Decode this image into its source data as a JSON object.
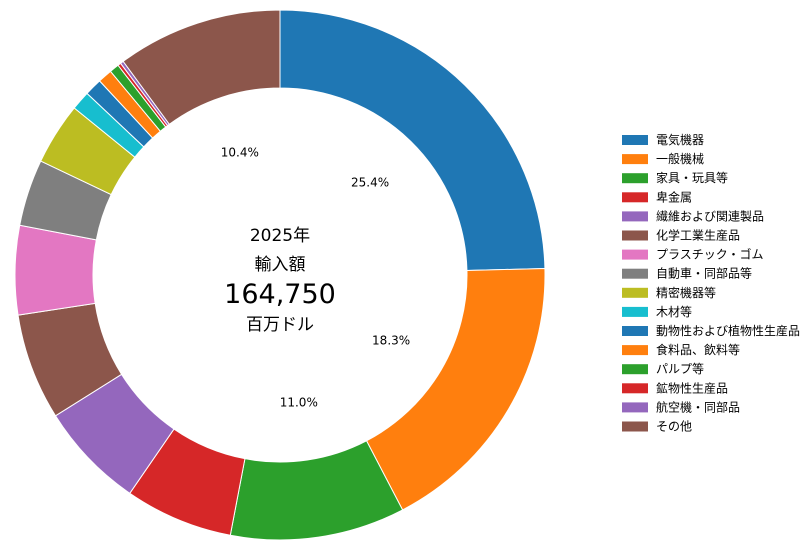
{
  "chart_data": {
    "type": "pie",
    "center": {
      "year": "2025年",
      "label": "輸入額",
      "value": "164,750",
      "unit": "百万ドル"
    },
    "categories": [
      "電気機器",
      "一般機械",
      "家具・玩具等",
      "卑金属",
      "繊維および関連製品",
      "化学工業生産品",
      "プラスチック・ゴム",
      "自動車・同部品等",
      "精密機器等",
      "木材等",
      "動物性および植物性生産品",
      "食料品、飲料等",
      "パルプ等",
      "鉱物性生産品",
      "航空機・同部品",
      "その他"
    ],
    "values": [
      25.4,
      18.3,
      11.0,
      6.8,
      6.7,
      6.7,
      5.6,
      4.2,
      3.9,
      1.2,
      1.1,
      0.9,
      0.6,
      0.2,
      0.2,
      10.4
    ],
    "labels": [
      "25.4%",
      "18.3%",
      "11.0%",
      "",
      "",
      "",
      "",
      "",
      "",
      "",
      "",
      "",
      "",
      "",
      "",
      "10.4%"
    ],
    "colors": [
      "#1f77b4",
      "#ff7f0e",
      "#2ca02c",
      "#d62728",
      "#9467bd",
      "#8c564b",
      "#e377c2",
      "#7f7f7f",
      "#bcbd22",
      "#17becf",
      "#1f77b4",
      "#ff7f0e",
      "#2ca02c",
      "#d62728",
      "#9467bd",
      "#8c564b"
    ],
    "donut": true,
    "start_angle": "12 o'clock",
    "direction": "clockwise",
    "legend_position": "right"
  }
}
